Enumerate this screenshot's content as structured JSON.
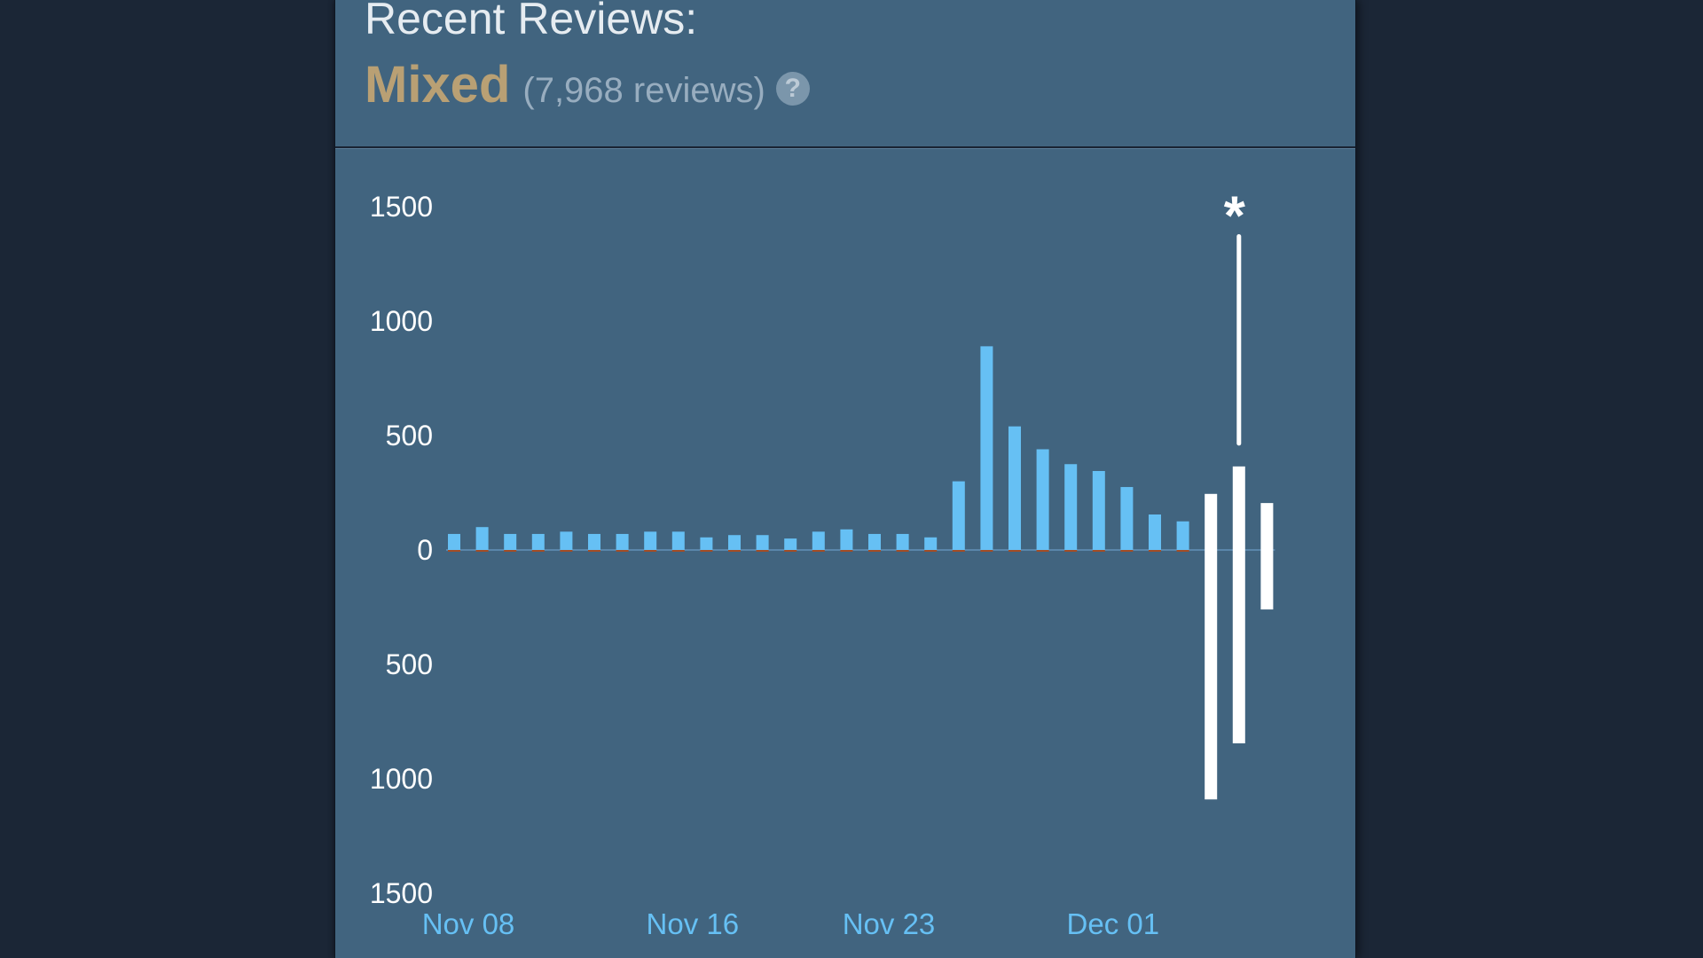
{
  "header": {
    "title": "Recent Reviews:",
    "summary": "Mixed",
    "count": "(7,968 reviews)",
    "help_icon": "question-mark-icon",
    "help_glyph": "?"
  },
  "colors": {
    "background": "#1b2636",
    "panel": "#41647f",
    "positive": "#66c0f4",
    "negative": "#a34c25",
    "highlight": "#ffffff",
    "summary": "#b9a074"
  },
  "chart_data": {
    "type": "bar",
    "y_ticks_labels": [
      "1500",
      "1000",
      "500",
      "0",
      "500",
      "1000",
      "1500"
    ],
    "y_ticks_values": [
      1500,
      1000,
      500,
      0,
      -500,
      -1000,
      -1500
    ],
    "x_tick_labels": [
      {
        "label": "Nov 08",
        "index": 0
      },
      {
        "label": "Nov 16",
        "index": 8
      },
      {
        "label": "Nov 23",
        "index": 15
      },
      {
        "label": "Dec 01",
        "index": 23
      }
    ],
    "ylim": [
      -1500,
      1500
    ],
    "series": [
      {
        "name": "positive",
        "values": [
          70,
          100,
          70,
          70,
          80,
          70,
          70,
          80,
          80,
          55,
          65,
          65,
          50,
          80,
          90,
          70,
          70,
          55,
          300,
          890,
          540,
          440,
          375,
          345,
          275,
          155,
          125,
          245,
          365,
          205
        ]
      },
      {
        "name": "negative",
        "values": [
          -5,
          -5,
          -5,
          -5,
          -5,
          -5,
          -5,
          -5,
          -5,
          -5,
          -5,
          -5,
          -5,
          -5,
          -5,
          -5,
          -5,
          -5,
          -5,
          -5,
          -5,
          -5,
          -5,
          -5,
          -5,
          -5,
          -5,
          -1090,
          -845,
          -260
        ]
      }
    ],
    "highlighted_indices": [
      27,
      28,
      29
    ],
    "annotation": {
      "text": "*",
      "index": 28,
      "value": 1370
    }
  }
}
